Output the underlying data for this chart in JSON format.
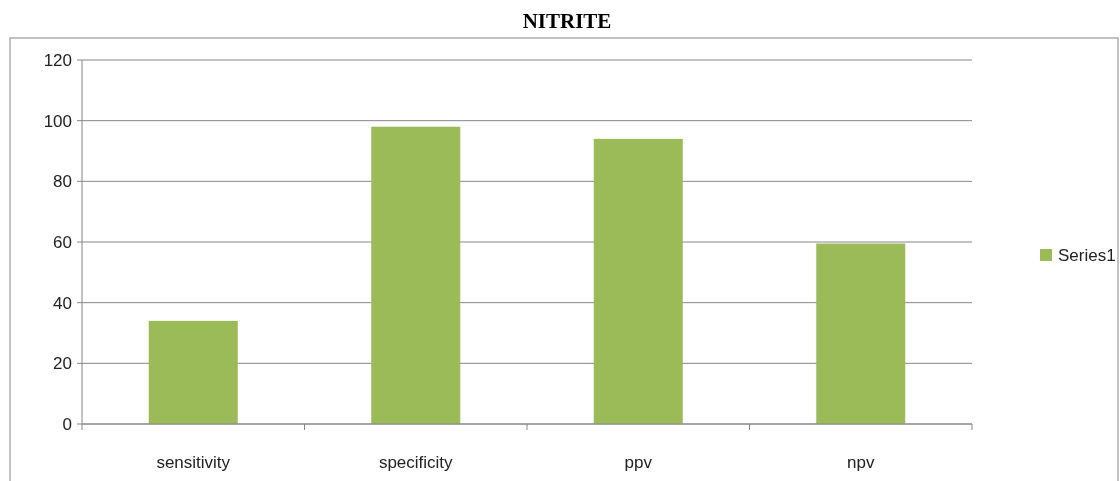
{
  "chart_data": {
    "type": "bar",
    "title": "NITRITE",
    "categories": [
      "sensitivity",
      "specificity",
      "ppv",
      "npv"
    ],
    "series": [
      {
        "name": "Series1",
        "color": "#9bbb59",
        "values": [
          34,
          98,
          94,
          59.5
        ]
      }
    ],
    "ylim": [
      0,
      120
    ],
    "yticks": [
      0,
      20,
      40,
      60,
      80,
      100,
      120
    ],
    "grid": "y",
    "legend": "right"
  }
}
